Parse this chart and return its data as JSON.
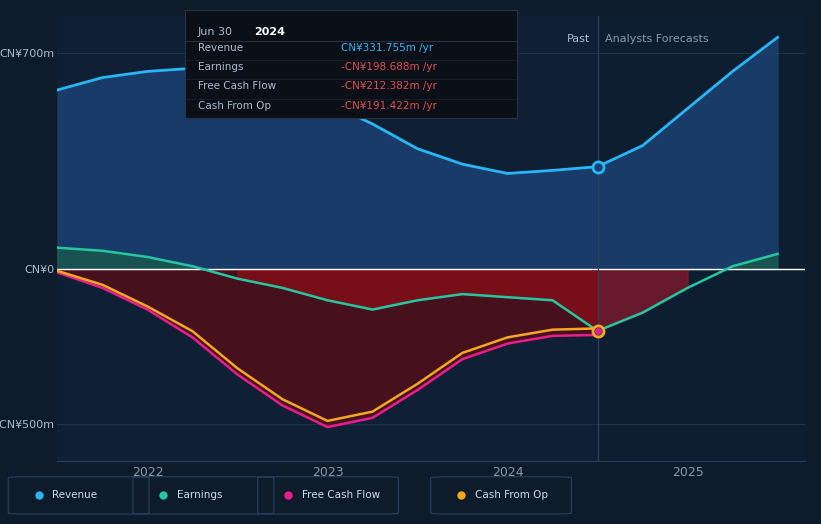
{
  "bg_color": "#0d1b2a",
  "plot_bg_color": "#0d1b2a",
  "ylabel_700": "CN¥700m",
  "ylabel_0": "CN¥0",
  "ylabel_neg500": "-CN¥500m",
  "xlabel_labels": [
    "2022",
    "2023",
    "2024",
    "2025"
  ],
  "divider_x": 2024.5,
  "past_label": "Past",
  "forecast_label": "Analysts Forecasts",
  "tooltip_revenue_label": "Revenue",
  "tooltip_revenue_value": "CN¥331.755m /yr",
  "tooltip_earnings_label": "Earnings",
  "tooltip_earnings_value": "-CN¥198.688m /yr",
  "tooltip_fcf_label": "Free Cash Flow",
  "tooltip_fcf_value": "-CN¥212.382m /yr",
  "tooltip_cfo_label": "Cash From Op",
  "tooltip_cfo_value": "-CN¥191.422m /yr",
  "revenue_color": "#29b6f6",
  "earnings_color": "#26c6a0",
  "fcf_color": "#e91e8c",
  "cfo_color": "#f5a623",
  "revenue_x": [
    2021.5,
    2021.75,
    2022.0,
    2022.25,
    2022.5,
    2022.75,
    2023.0,
    2023.25,
    2023.5,
    2023.75,
    2024.0,
    2024.25,
    2024.5,
    2024.75,
    2025.0,
    2025.25,
    2025.5
  ],
  "revenue_y": [
    580,
    620,
    640,
    650,
    630,
    600,
    540,
    470,
    390,
    340,
    310,
    320,
    332,
    400,
    520,
    640,
    750
  ],
  "earnings_x": [
    2021.5,
    2021.75,
    2022.0,
    2022.25,
    2022.5,
    2022.75,
    2023.0,
    2023.25,
    2023.5,
    2023.75,
    2024.0,
    2024.25,
    2024.5,
    2024.75,
    2025.0,
    2025.25,
    2025.5
  ],
  "earnings_y": [
    70,
    60,
    40,
    10,
    -30,
    -60,
    -100,
    -130,
    -100,
    -80,
    -90,
    -100,
    -199,
    -140,
    -60,
    10,
    50
  ],
  "fcf_x": [
    2021.5,
    2021.75,
    2022.0,
    2022.25,
    2022.5,
    2022.75,
    2023.0,
    2023.25,
    2023.5,
    2023.75,
    2024.0,
    2024.25,
    2024.5
  ],
  "fcf_y": [
    -10,
    -60,
    -130,
    -220,
    -340,
    -440,
    -510,
    -480,
    -390,
    -290,
    -240,
    -215,
    -212
  ],
  "cfo_x": [
    2021.5,
    2021.75,
    2022.0,
    2022.25,
    2022.5,
    2022.75,
    2023.0,
    2023.25,
    2023.5,
    2023.75,
    2024.0,
    2024.25,
    2024.5
  ],
  "cfo_y": [
    -5,
    -50,
    -120,
    -200,
    -320,
    -420,
    -490,
    -460,
    -370,
    -270,
    -220,
    -195,
    -191
  ],
  "xlim": [
    2021.5,
    2025.65
  ],
  "ylim": [
    -620,
    820
  ]
}
